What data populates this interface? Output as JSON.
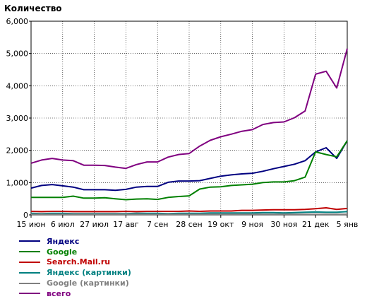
{
  "chart_data": {
    "type": "line",
    "title": "Количество",
    "xlabel": "",
    "ylabel": "",
    "ylim": [
      0,
      6000
    ],
    "yticks": [
      0,
      1000,
      2000,
      3000,
      4000,
      5000,
      6000
    ],
    "ytick_labels": [
      "0",
      "1,000",
      "2,000",
      "3,000",
      "4,000",
      "5,000",
      "6,000"
    ],
    "xtick_labels": [
      "15 июн",
      "6 июл",
      "27 июл",
      "17 авг",
      "7 сен",
      "28 сен",
      "19 окт",
      "9 ноя",
      "30 ноя",
      "21 дек",
      "5 янв"
    ],
    "x": [
      "15 июн",
      "22 июн",
      "29 июн",
      "6 июл",
      "13 июл",
      "20 июл",
      "27 июл",
      "3 авг",
      "10 авг",
      "17 авг",
      "24 авг",
      "31 авг",
      "7 сен",
      "14 сен",
      "21 сен",
      "28 сен",
      "5 окт",
      "12 окт",
      "19 окт",
      "26 окт",
      "2 ноя",
      "9 ноя",
      "16 ноя",
      "23 ноя",
      "30 ноя",
      "7 дек",
      "14 дек",
      "21 дек",
      "28 дек",
      "4 янв",
      "5 янв"
    ],
    "grid": true,
    "legend_position": "bottom-left",
    "series": [
      {
        "name": "Яндекс",
        "color": "#000080",
        "values": [
          830,
          910,
          940,
          900,
          860,
          780,
          780,
          780,
          760,
          790,
          860,
          880,
          880,
          1010,
          1050,
          1050,
          1060,
          1130,
          1200,
          1240,
          1270,
          1290,
          1350,
          1430,
          1500,
          1570,
          1680,
          1950,
          2080,
          1750,
          2300
        ]
      },
      {
        "name": "Google",
        "color": "#008000",
        "values": [
          540,
          540,
          540,
          540,
          580,
          520,
          520,
          530,
          500,
          470,
          490,
          500,
          480,
          540,
          570,
          590,
          800,
          860,
          870,
          910,
          930,
          950,
          1000,
          1020,
          1020,
          1060,
          1170,
          1950,
          1870,
          1800,
          2300
        ]
      },
      {
        "name": "Search.Mail.ru",
        "color": "#c00000",
        "values": [
          110,
          100,
          110,
          110,
          100,
          100,
          100,
          100,
          100,
          110,
          100,
          110,
          110,
          110,
          110,
          120,
          110,
          120,
          120,
          120,
          140,
          140,
          150,
          160,
          160,
          160,
          170,
          190,
          220,
          170,
          200
        ]
      },
      {
        "name": "Яндекс (картинки)",
        "color": "#008080",
        "values": [
          50,
          40,
          50,
          50,
          40,
          40,
          40,
          40,
          40,
          40,
          50,
          50,
          50,
          40,
          50,
          50,
          50,
          60,
          60,
          60,
          60,
          60,
          70,
          70,
          60,
          70,
          80,
          90,
          80,
          80,
          100
        ]
      },
      {
        "name": "Google (картинки)",
        "color": "#808080",
        "values": [
          20,
          20,
          20,
          20,
          20,
          20,
          20,
          20,
          20,
          20,
          20,
          20,
          20,
          20,
          20,
          20,
          20,
          20,
          20,
          20,
          20,
          20,
          20,
          20,
          20,
          20,
          20,
          20,
          20,
          20,
          20
        ]
      },
      {
        "name": "всего",
        "color": "#800080",
        "values": [
          1600,
          1700,
          1750,
          1700,
          1680,
          1540,
          1540,
          1530,
          1480,
          1440,
          1560,
          1640,
          1640,
          1790,
          1870,
          1900,
          2130,
          2310,
          2420,
          2500,
          2590,
          2640,
          2800,
          2860,
          2880,
          3010,
          3220,
          4360,
          4450,
          3930,
          5150
        ]
      }
    ]
  }
}
